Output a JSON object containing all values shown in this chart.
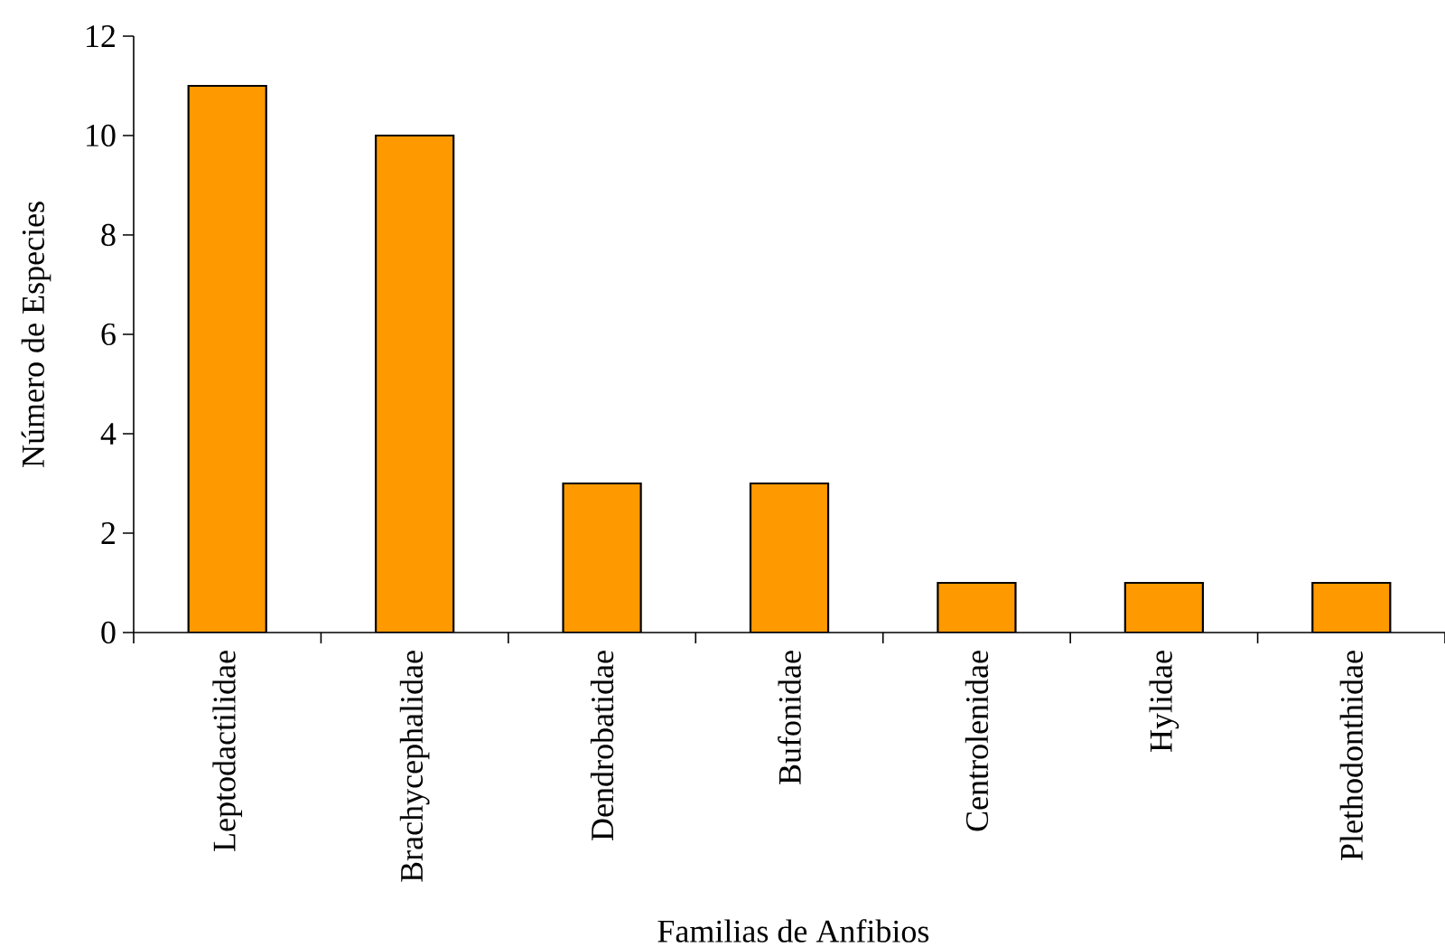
{
  "chart_data": {
    "type": "bar",
    "xlabel": "Familias de Anfibios",
    "ylabel": "Número de Especies",
    "categories": [
      "Leptodactilidae",
      "Brachycephalidae",
      "Dendrobatidae",
      "Bufonidae",
      "Centrolenidae",
      "Hylidae",
      "Plethodonthidae"
    ],
    "values": [
      11,
      10,
      3,
      3,
      1,
      1,
      1
    ],
    "color": "#ff9900",
    "ylim": [
      0,
      12
    ],
    "yticks": [
      0,
      2,
      4,
      6,
      8,
      10,
      12
    ]
  }
}
